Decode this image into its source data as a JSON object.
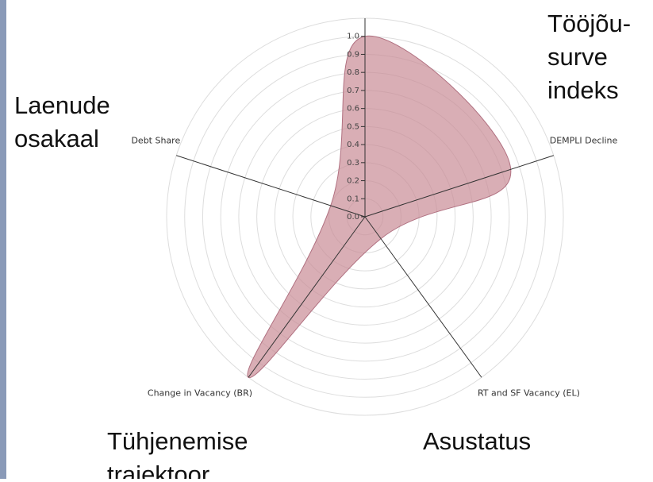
{
  "chart_data": {
    "type": "radar",
    "categories": [
      "",
      "DEMPLI Decline",
      "RT and SF Vacancy (EL)",
      "Change in Vacancy (BR)",
      "Debt Share"
    ],
    "series": [
      {
        "color": "#c98b95",
        "values": [
          1.0,
          0.85,
          0.15,
          1.1,
          0.2
        ]
      }
    ],
    "ylim": [
      0,
      1.1
    ],
    "yticks": [
      {
        "value": 0,
        "label": "0.0"
      },
      0.1,
      0.2,
      0.3,
      0.4,
      0.5,
      0.6,
      0.7,
      0.8,
      0.9,
      {
        "value": 1,
        "label": "1.0"
      }
    ],
    "annotations": [
      [
        "Tööjõu-",
        "surve",
        "indeks"
      ],
      [
        "Laenude",
        "osakaal"
      ],
      [
        "Tühjenemise",
        "trajektoor"
      ],
      [
        "Asustatus"
      ]
    ]
  }
}
